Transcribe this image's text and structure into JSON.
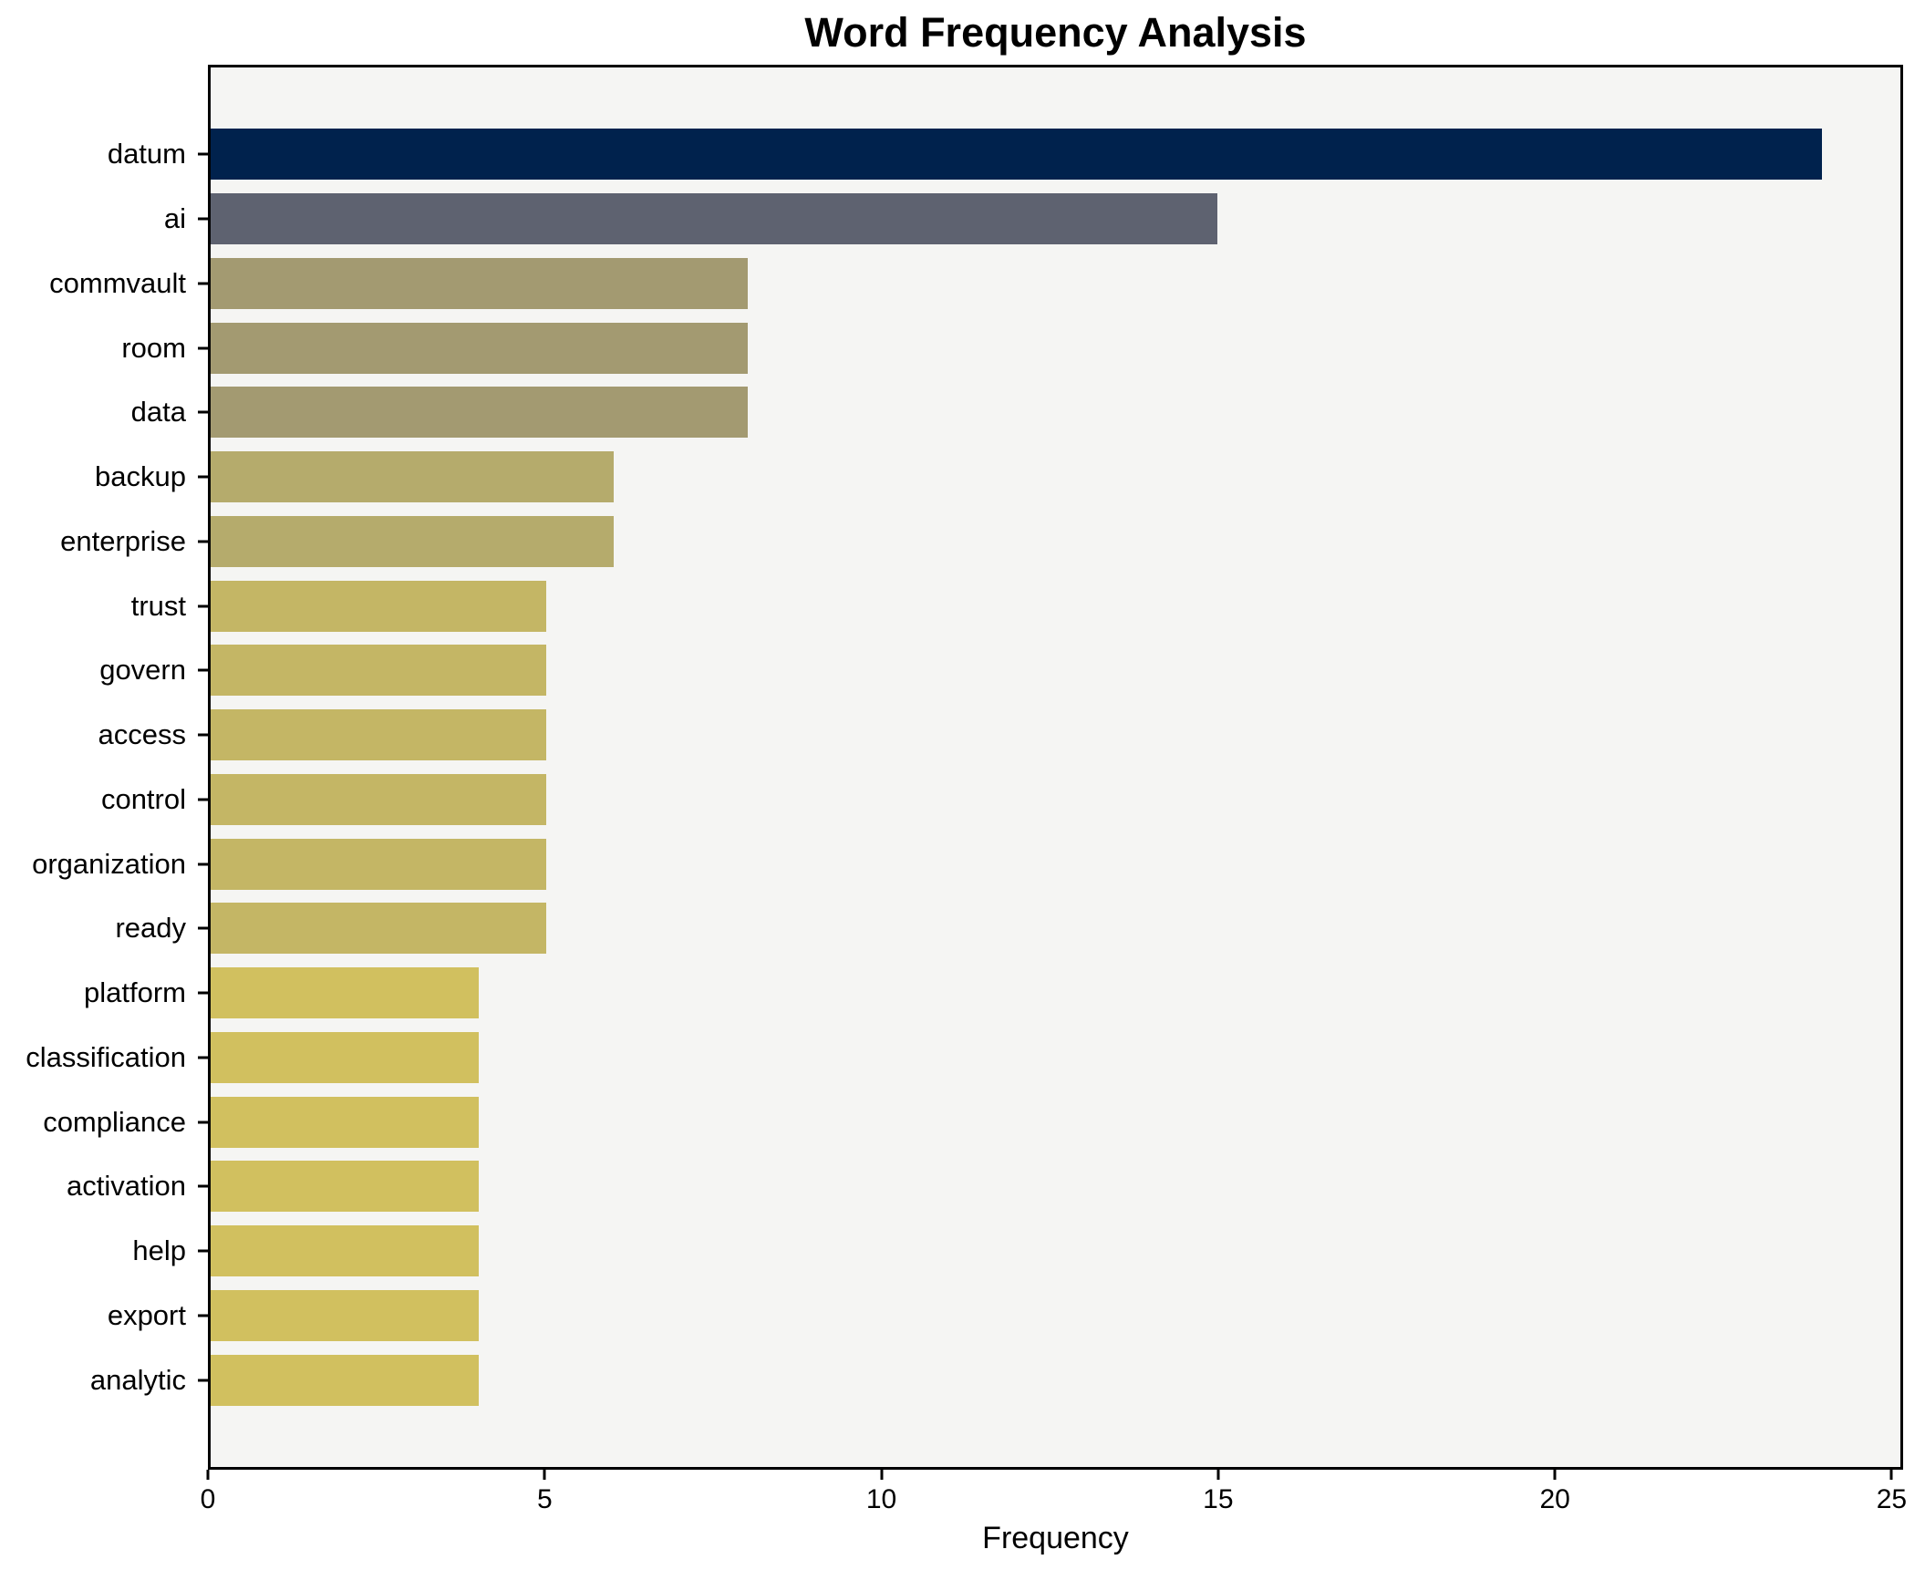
{
  "title": "Word Frequency Analysis",
  "chart_data": {
    "type": "bar",
    "orientation": "horizontal",
    "title": "Word Frequency Analysis",
    "xlabel": "Frequency",
    "ylabel": "",
    "categories": [
      "datum",
      "ai",
      "commvault",
      "room",
      "data",
      "backup",
      "enterprise",
      "trust",
      "govern",
      "access",
      "control",
      "organization",
      "ready",
      "platform",
      "classification",
      "compliance",
      "activation",
      "help",
      "export",
      "analytic"
    ],
    "values": [
      24,
      15,
      8,
      8,
      8,
      6,
      6,
      5,
      5,
      5,
      5,
      5,
      5,
      4,
      4,
      4,
      4,
      4,
      4,
      4
    ],
    "bar_colors": [
      "#00224d",
      "#5e6270",
      "#a39a71",
      "#a39a71",
      "#a39a71",
      "#b5ab6c",
      "#b5ab6c",
      "#c4b665",
      "#c4b665",
      "#c4b665",
      "#c4b665",
      "#c4b665",
      "#c4b665",
      "#d1c05f",
      "#d1c05f",
      "#d1c05f",
      "#d1c05f",
      "#d1c05f",
      "#d1c05f",
      "#d1c05f"
    ],
    "xticks": [
      0,
      5,
      10,
      15,
      20,
      25
    ],
    "xlim": [
      0,
      25.17
    ],
    "grid": false,
    "legend": null,
    "plot_bg": "#f5f5f3",
    "fig_bg": "#ffffff",
    "axis_color": "#000000"
  }
}
